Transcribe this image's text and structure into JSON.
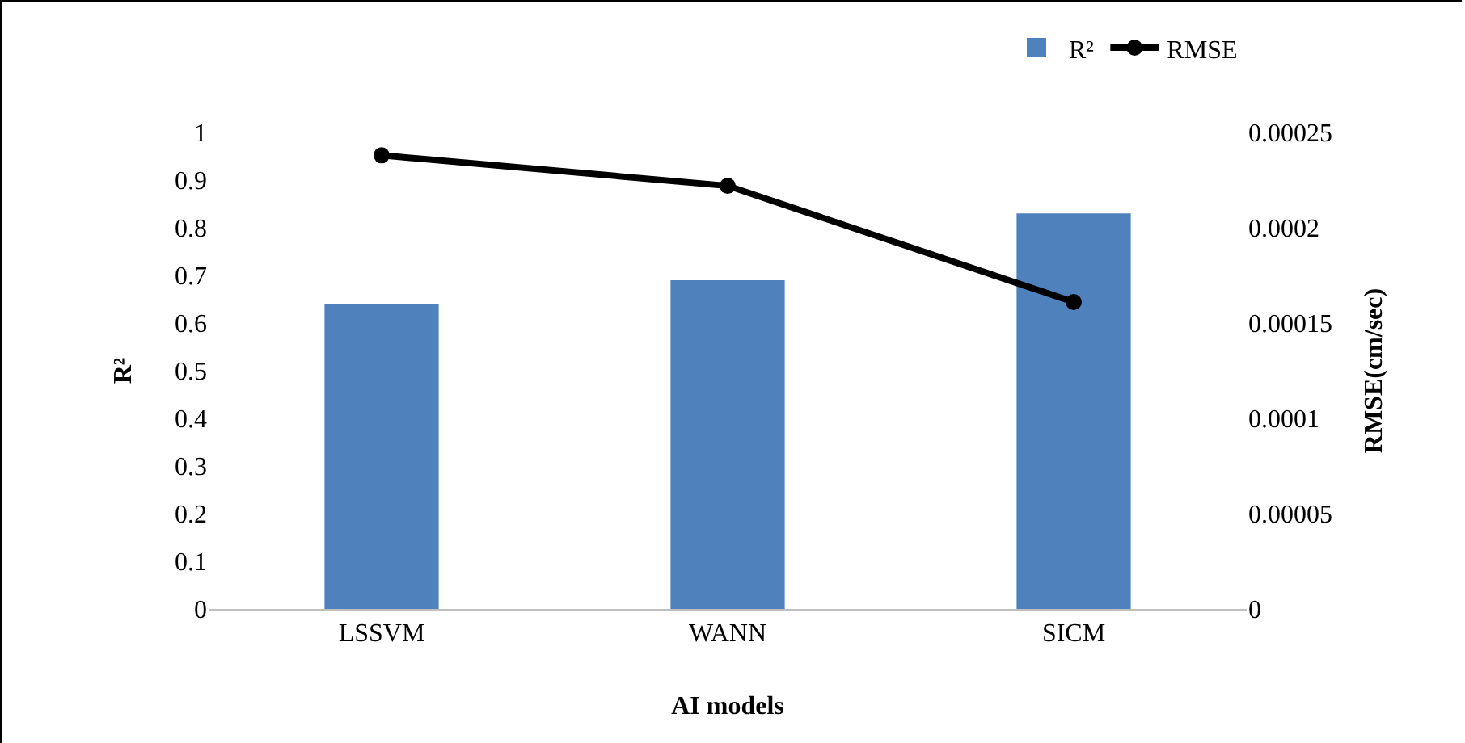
{
  "chart_data": {
    "type": "bar",
    "xlabel": "AI models",
    "ylabel": "R²",
    "y2label": "RMSE(cm/sec)",
    "categories": [
      "LSSVM",
      "WANN",
      "SICM"
    ],
    "series": [
      {
        "name": "R²",
        "color": "#4f81bd",
        "values": [
          0.64,
          0.69,
          0.83
        ]
      },
      {
        "name": "RMSE",
        "type": "line",
        "axis": "y2",
        "color": "#000000",
        "values": [
          0.000238,
          0.000222,
          0.000161
        ]
      }
    ],
    "ylim": [
      0,
      1
    ],
    "yticks": [
      0,
      0.1,
      0.2,
      0.3,
      0.4,
      0.5,
      0.6,
      0.7,
      0.8,
      0.9,
      1
    ],
    "y2lim": [
      0,
      0.00025
    ],
    "y2ticks": [
      0,
      {
        "value": 5e-05,
        "label": "0.00005"
      },
      0.0001,
      0.00015,
      0.0002,
      0.00025
    ],
    "grid": false,
    "legend": "top right",
    "marker": "circle",
    "line_style": "solid"
  }
}
